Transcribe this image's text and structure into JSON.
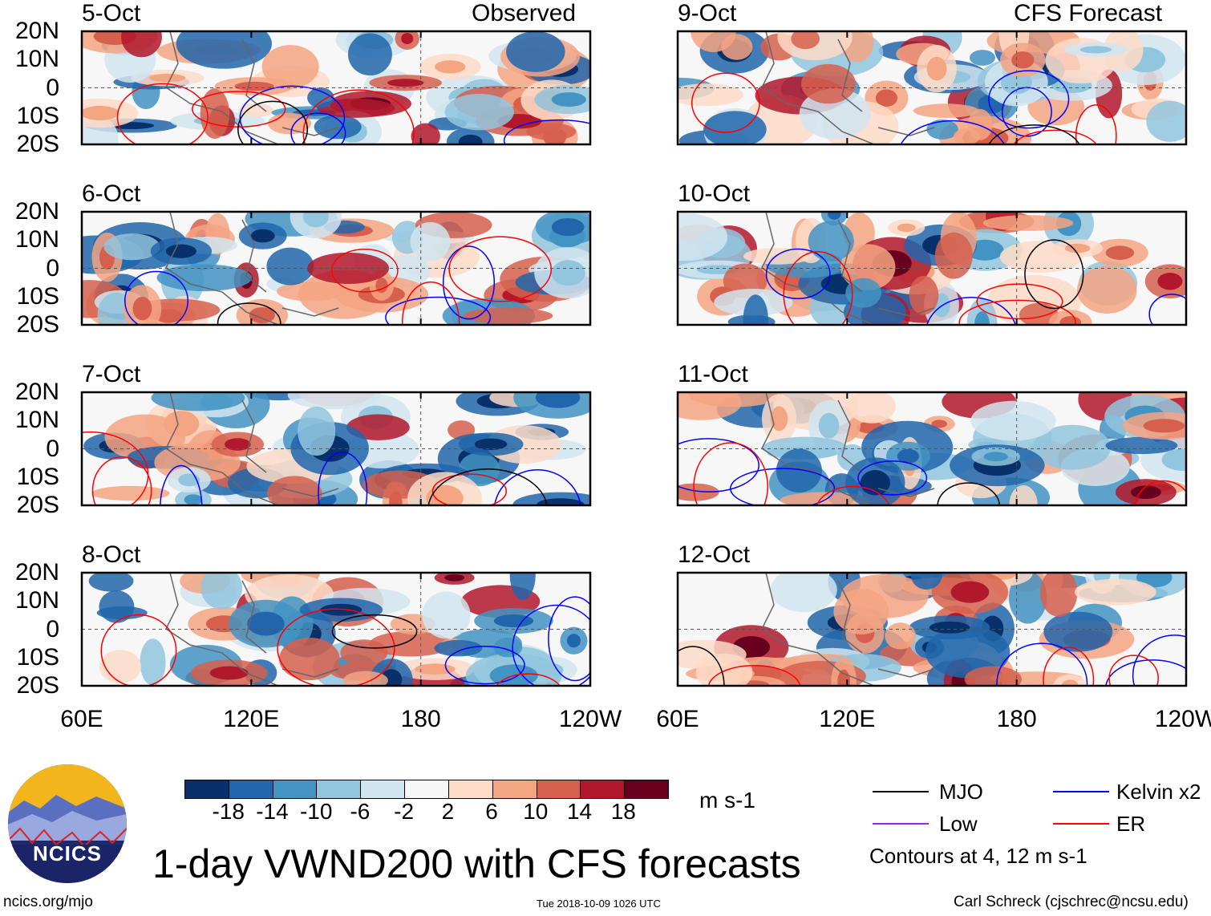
{
  "title": "1-day VWND200 with CFS forecasts",
  "columns": {
    "left_label": "Observed",
    "right_label": "CFS Forecast"
  },
  "panels_left": [
    "5-Oct",
    "6-Oct",
    "7-Oct",
    "8-Oct"
  ],
  "panels_right": [
    "9-Oct",
    "10-Oct",
    "11-Oct",
    "12-Oct"
  ],
  "lat_ticks": [
    "20N",
    "10N",
    "0",
    "10S",
    "20S"
  ],
  "lon_ticks": [
    "60E",
    "120E",
    "180",
    "120W"
  ],
  "colorbar": {
    "levels": [
      "-18",
      "-14",
      "-10",
      "-6",
      "-2",
      "2",
      "6",
      "10",
      "14",
      "18"
    ],
    "colors": [
      "#08306b",
      "#2166ac",
      "#4393c3",
      "#92c5de",
      "#d1e5f0",
      "#f7f7f7",
      "#fddbc7",
      "#f4a582",
      "#d6604d",
      "#b2182b",
      "#67001f"
    ],
    "units": "m s-1"
  },
  "legend": {
    "items": [
      {
        "label": "MJO",
        "color": "#000000"
      },
      {
        "label": "Kelvin x2",
        "color": "#0000ff"
      },
      {
        "label": "Low",
        "color": "#a020f0"
      },
      {
        "label": "ER",
        "color": "#ff0000"
      }
    ],
    "note": "Contours at 4, 12 m s-1"
  },
  "logo": {
    "text": "NCICS"
  },
  "footer": {
    "website": "ncics.org/mjo",
    "timestamp": "Tue 2018-10-09 1026 UTC",
    "credit": "Carl Schreck (cjschrec@ncsu.edu)"
  }
}
